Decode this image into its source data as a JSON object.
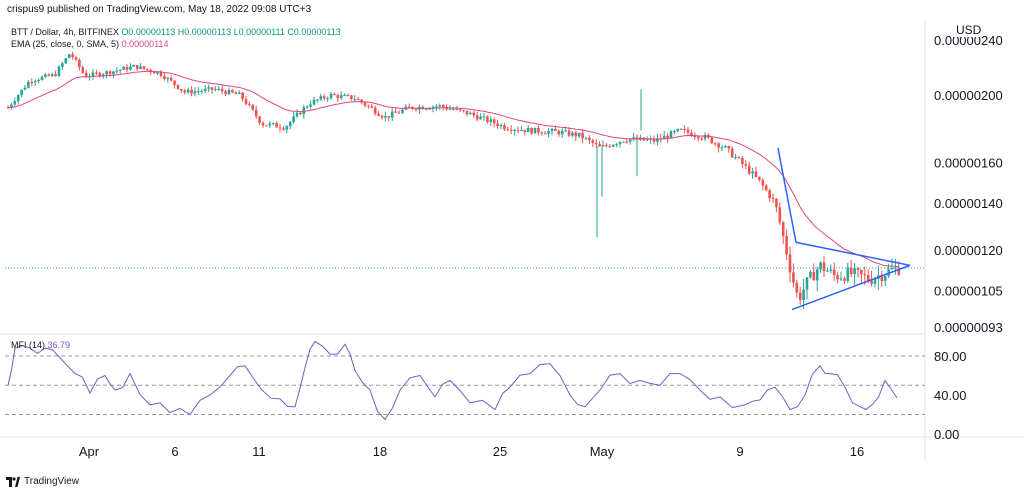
{
  "header": {
    "publisher": "crispus9 published on TradingView.com, May 18, 2022 09:08 UTC+3",
    "symbol": "BTT / Dollar, 4h, BITFINEX",
    "ohlc": "O0.00000113 H0.00000113 L0.00000111 C0.00000113",
    "ema_label": "EMA (25, close, 0, SMA, 5)",
    "ema_value": "0.00000114",
    "currency": "USD"
  },
  "mfi": {
    "label": "MFI (14)",
    "value": "36.79"
  },
  "footer": {
    "brand": "TradingView"
  },
  "colors": {
    "up": "#26a69a",
    "down": "#ef5350",
    "ema": "#e0457b",
    "mfi": "#7e57c2",
    "trendline": "#2962ff"
  },
  "chart_data": {
    "type": "candlestick",
    "price_axis": {
      "ticks": [
        "0.00000240",
        "0.00000200",
        "0.00000160",
        "0.00000140",
        "0.00000120",
        "0.00000105",
        "0.00000093"
      ],
      "scale": "log"
    },
    "x_axis": {
      "ticks": [
        "Apr",
        "6",
        "11",
        "18",
        "25",
        "May",
        "9",
        "16"
      ]
    },
    "mfi_axis": {
      "ticks": [
        "80.00",
        "40.00",
        "0.00"
      ],
      "ylim": [
        0,
        100
      ],
      "bands": [
        80,
        50,
        20
      ]
    },
    "last_price": 1.13e-06
  }
}
